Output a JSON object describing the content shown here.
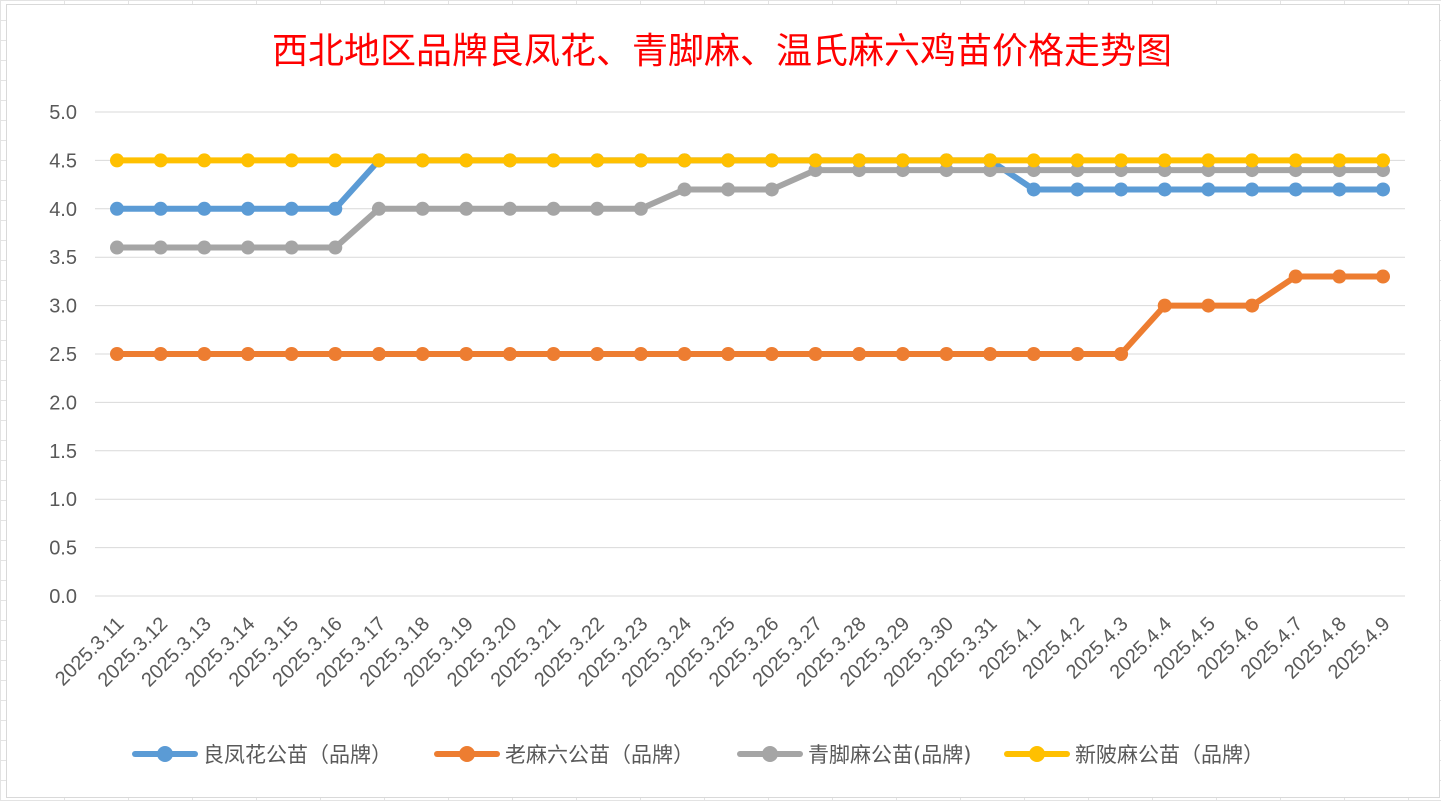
{
  "chart_data": {
    "type": "line",
    "title": "西北地区品牌良凤花、青脚麻、温氏麻六鸡苗价格走势图",
    "xlabel": "",
    "ylabel": "",
    "ylim": [
      0,
      5
    ],
    "ytick_labels": [
      "0.0",
      "0.5",
      "1.0",
      "1.5",
      "2.0",
      "2.5",
      "3.0",
      "3.5",
      "4.0",
      "4.5",
      "5.0"
    ],
    "grid": true,
    "legend_position": "bottom",
    "categories": [
      "2025.3.11",
      "2025.3.12",
      "2025.3.13",
      "2025.3.14",
      "2025.3.15",
      "2025.3.16",
      "2025.3.17",
      "2025.3.18",
      "2025.3.19",
      "2025.3.20",
      "2025.3.21",
      "2025.3.22",
      "2025.3.23",
      "2025.3.24",
      "2025.3.25",
      "2025.3.26",
      "2025.3.27",
      "2025.3.28",
      "2025.3.29",
      "2025.3.30",
      "2025.3.31",
      "2025.4.1",
      "2025.4.2",
      "2025.4.3",
      "2025.4.4",
      "2025.4.5",
      "2025.4.6",
      "2025.4.7",
      "2025.4.8",
      "2025.4.9"
    ],
    "series": [
      {
        "name": "良凤花公苗（品牌）",
        "color": "#5b9bd5",
        "values": [
          4.0,
          4.0,
          4.0,
          4.0,
          4.0,
          4.0,
          4.5,
          4.5,
          4.5,
          4.5,
          4.5,
          4.5,
          4.5,
          4.5,
          4.5,
          4.5,
          4.5,
          4.5,
          4.5,
          4.5,
          4.5,
          4.2,
          4.2,
          4.2,
          4.2,
          4.2,
          4.2,
          4.2,
          4.2,
          4.2
        ]
      },
      {
        "name": "老麻六公苗（品牌）",
        "color": "#ed7d31",
        "values": [
          2.5,
          2.5,
          2.5,
          2.5,
          2.5,
          2.5,
          2.5,
          2.5,
          2.5,
          2.5,
          2.5,
          2.5,
          2.5,
          2.5,
          2.5,
          2.5,
          2.5,
          2.5,
          2.5,
          2.5,
          2.5,
          2.5,
          2.5,
          2.5,
          3.0,
          3.0,
          3.0,
          3.3,
          3.3,
          3.3
        ]
      },
      {
        "name": "青脚麻公苗(品牌)",
        "color": "#a5a5a5",
        "values": [
          3.6,
          3.6,
          3.6,
          3.6,
          3.6,
          3.6,
          4.0,
          4.0,
          4.0,
          4.0,
          4.0,
          4.0,
          4.0,
          4.2,
          4.2,
          4.2,
          4.4,
          4.4,
          4.4,
          4.4,
          4.4,
          4.4,
          4.4,
          4.4,
          4.4,
          4.4,
          4.4,
          4.4,
          4.4,
          4.4
        ]
      },
      {
        "name": "新陂麻公苗（品牌）",
        "color": "#ffc000",
        "values": [
          4.5,
          4.5,
          4.5,
          4.5,
          4.5,
          4.5,
          4.5,
          4.5,
          4.5,
          4.5,
          4.5,
          4.5,
          4.5,
          4.5,
          4.5,
          4.5,
          4.5,
          4.5,
          4.5,
          4.5,
          4.5,
          4.5,
          4.5,
          4.5,
          4.5,
          4.5,
          4.5,
          4.5,
          4.5,
          4.5
        ]
      }
    ]
  }
}
